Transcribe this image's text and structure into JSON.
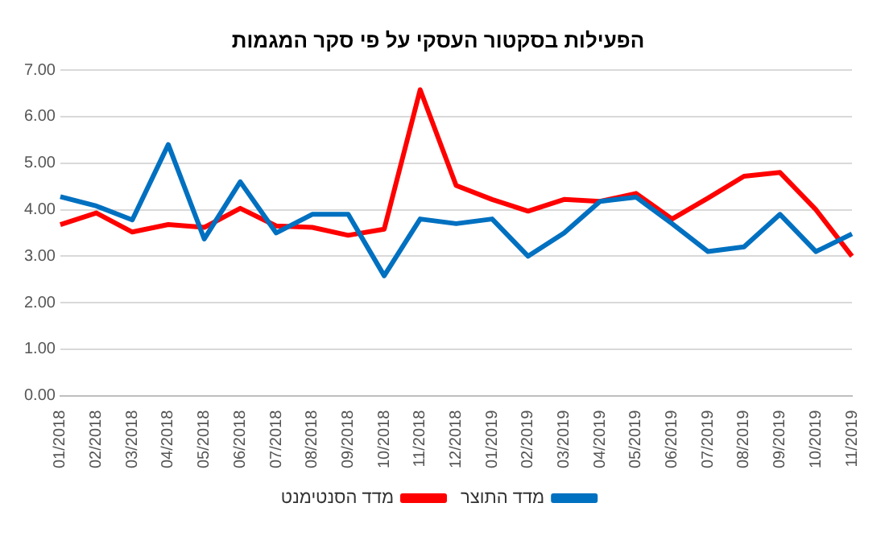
{
  "chart_data": {
    "type": "line",
    "title": "הפעילות בסקטור העסקי על פי סקר המגמות",
    "categories": [
      "01/2018",
      "02/2018",
      "03/2018",
      "04/2018",
      "05/2018",
      "06/2018",
      "07/2018",
      "08/2018",
      "09/2018",
      "10/2018",
      "11/2018",
      "12/2018",
      "01/2019",
      "02/2019",
      "03/2019",
      "04/2019",
      "05/2019",
      "06/2019",
      "07/2019",
      "08/2019",
      "09/2019",
      "10/2019",
      "11/2019"
    ],
    "series": [
      {
        "name": "מדד התוצר",
        "color": "#0070c0",
        "values": [
          4.28,
          4.08,
          3.78,
          5.4,
          3.37,
          4.6,
          3.5,
          3.9,
          3.9,
          2.58,
          3.8,
          3.7,
          3.8,
          3.0,
          3.5,
          4.18,
          4.27,
          3.7,
          3.1,
          3.2,
          3.9,
          3.1,
          3.48
        ]
      },
      {
        "name": "מדד הסנטימנט",
        "color": "#ff0000",
        "values": [
          3.68,
          3.93,
          3.52,
          3.68,
          3.62,
          4.03,
          3.65,
          3.62,
          3.45,
          3.58,
          6.58,
          4.52,
          4.22,
          3.97,
          4.22,
          4.18,
          4.35,
          3.8,
          4.25,
          4.72,
          4.8,
          4.0,
          3.0
        ]
      }
    ],
    "ylim": [
      0,
      7
    ],
    "yticks": [
      {
        "value": 0,
        "label": "0.00"
      },
      {
        "value": 1,
        "label": "1.00"
      },
      {
        "value": 2,
        "label": "2.00"
      },
      {
        "value": 3,
        "label": "3.00"
      },
      {
        "value": 4,
        "label": "4.00"
      },
      {
        "value": 5,
        "label": "5.00"
      },
      {
        "value": 6,
        "label": "6.00"
      },
      {
        "value": 7,
        "label": "7.00"
      }
    ],
    "grid": "y",
    "legend": "bottom",
    "marker": "none",
    "line_style": "solid"
  }
}
